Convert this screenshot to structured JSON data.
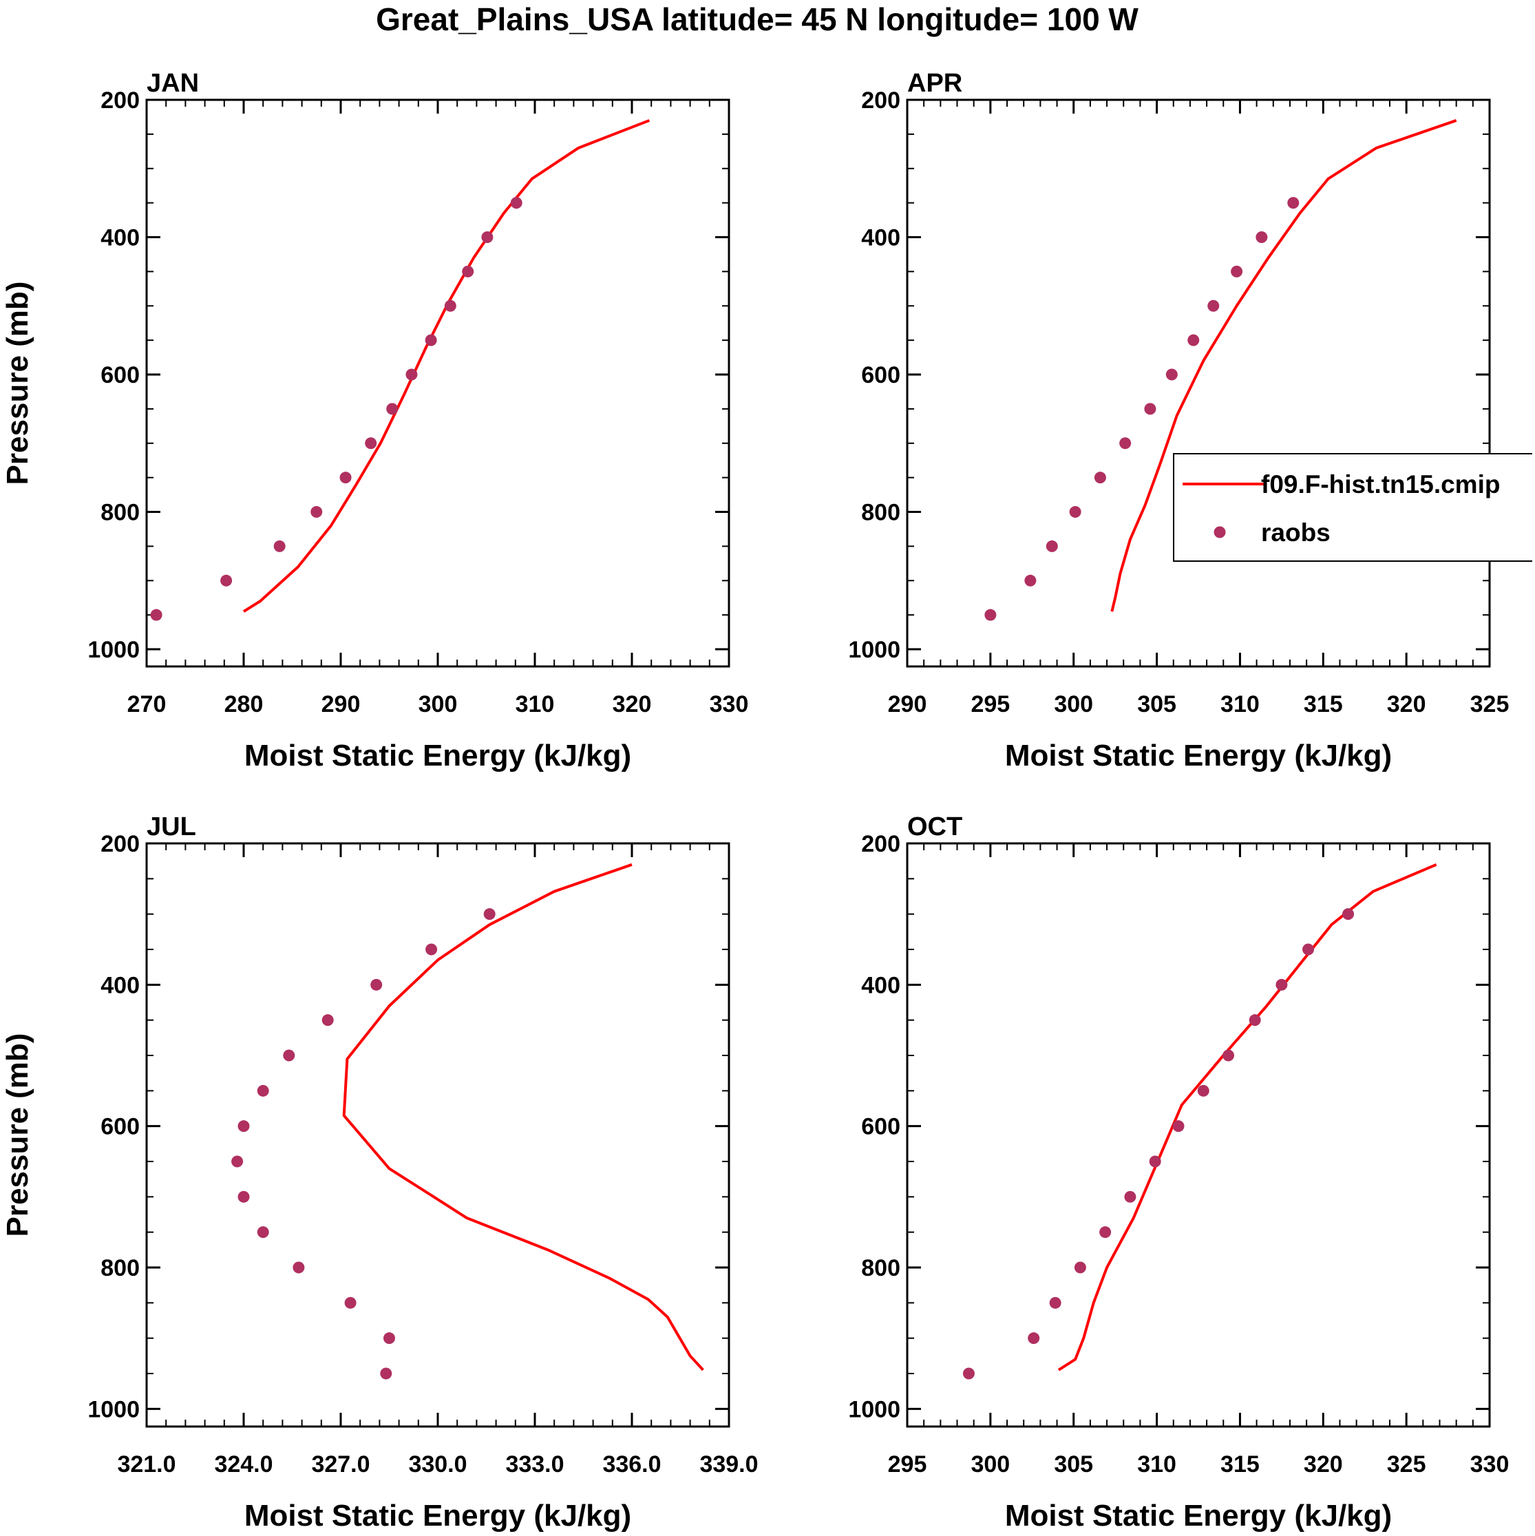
{
  "figure": {
    "title": "Great_Plains_USA  latitude= 45 N longitude= 100 W"
  },
  "legend": {
    "model_label": "f09.F-hist.tn15.cmip",
    "obs_label": "raobs"
  },
  "colors": {
    "model_line": "#ff0000",
    "obs_marker": "#b03060",
    "axes": "#000000"
  },
  "chart_data": [
    {
      "type": "line",
      "panel_label": "JAN",
      "xlabel": "Moist Static Energy (kJ/kg)",
      "ylabel": "Pressure (mb)",
      "xlim": [
        270,
        330
      ],
      "x_ticks": [
        "270",
        "280",
        "290",
        "300",
        "310",
        "320",
        "330"
      ],
      "x_tick_values": [
        270,
        280,
        290,
        300,
        310,
        320,
        330
      ],
      "ylim": [
        200,
        1025
      ],
      "y_reversed": true,
      "y_ticks": [
        "200",
        "400",
        "600",
        "800",
        "1000"
      ],
      "y_tick_values": [
        200,
        400,
        600,
        800,
        1000
      ],
      "series": [
        {
          "kind": "line",
          "x": [
            321.8,
            314.5,
            309.7,
            306.8,
            303.7,
            301.1,
            298.8,
            296.5,
            294.1,
            291.6,
            289.0,
            285.6,
            281.7,
            280.0
          ],
          "y": [
            230,
            270,
            315,
            365,
            430,
            495,
            560,
            630,
            700,
            760,
            820,
            880,
            930,
            945
          ]
        },
        {
          "kind": "scatter",
          "x": [
            308.1,
            305.1,
            303.1,
            301.3,
            299.3,
            297.3,
            295.3,
            293.1,
            290.5,
            287.5,
            283.7,
            278.2,
            271.0
          ],
          "y": [
            350,
            400,
            450,
            500,
            550,
            600,
            650,
            700,
            750,
            800,
            850,
            900,
            950
          ]
        }
      ]
    },
    {
      "type": "line",
      "panel_label": "APR",
      "xlabel": "Moist Static Energy (kJ/kg)",
      "ylabel": "",
      "xlim": [
        290,
        325
      ],
      "x_ticks": [
        "290",
        "295",
        "300",
        "305",
        "310",
        "315",
        "320",
        "325"
      ],
      "x_tick_values": [
        290,
        295,
        300,
        305,
        310,
        315,
        320,
        325
      ],
      "ylim": [
        200,
        1025
      ],
      "y_reversed": true,
      "y_ticks": [
        "200",
        "400",
        "600",
        "800",
        "1000"
      ],
      "y_tick_values": [
        200,
        400,
        600,
        800,
        1000
      ],
      "series": [
        {
          "kind": "line",
          "x": [
            323.0,
            318.2,
            315.3,
            313.6,
            311.7,
            309.8,
            307.8,
            306.2,
            305.2,
            304.3,
            303.4,
            302.8,
            302.5,
            302.3
          ],
          "y": [
            230,
            270,
            315,
            365,
            430,
            500,
            580,
            660,
            730,
            790,
            840,
            890,
            925,
            945
          ]
        },
        {
          "kind": "scatter",
          "x": [
            313.2,
            311.3,
            309.8,
            308.4,
            307.2,
            305.9,
            304.6,
            303.1,
            301.6,
            300.1,
            298.7,
            297.4,
            295.0
          ],
          "y": [
            350,
            400,
            450,
            500,
            550,
            600,
            650,
            700,
            750,
            800,
            850,
            900,
            950
          ]
        }
      ]
    },
    {
      "type": "line",
      "panel_label": "JUL",
      "xlabel": "Moist Static Energy (kJ/kg)",
      "ylabel": "Pressure (mb)",
      "xlim": [
        321.0,
        339.0
      ],
      "x_ticks": [
        "321.0",
        "324.0",
        "327.0",
        "330.0",
        "333.0",
        "336.0",
        "339.0"
      ],
      "x_tick_values": [
        321,
        324,
        327,
        330,
        333,
        336,
        339
      ],
      "ylim": [
        200,
        1025
      ],
      "y_reversed": true,
      "y_ticks": [
        "200",
        "400",
        "600",
        "800",
        "1000"
      ],
      "y_tick_values": [
        200,
        400,
        600,
        800,
        1000
      ],
      "series": [
        {
          "kind": "line",
          "x": [
            336.0,
            333.6,
            331.6,
            330.0,
            328.5,
            327.2,
            327.1,
            328.5,
            330.9,
            333.4,
            335.3,
            336.5,
            337.1,
            337.8,
            338.2
          ],
          "y": [
            230,
            268,
            315,
            365,
            430,
            505,
            585,
            660,
            730,
            775,
            815,
            845,
            870,
            925,
            945
          ]
        },
        {
          "kind": "scatter",
          "x": [
            331.6,
            329.8,
            328.1,
            326.6,
            325.4,
            324.6,
            324.0,
            323.8,
            324.0,
            324.6,
            325.7,
            327.3,
            328.5,
            328.4
          ],
          "y": [
            300,
            350,
            400,
            450,
            500,
            550,
            600,
            650,
            700,
            750,
            800,
            850,
            900,
            950
          ]
        }
      ]
    },
    {
      "type": "line",
      "panel_label": "OCT",
      "xlabel": "Moist Static Energy (kJ/kg)",
      "ylabel": "",
      "xlim": [
        295,
        330
      ],
      "x_ticks": [
        "295",
        "300",
        "305",
        "310",
        "315",
        "320",
        "325",
        "330"
      ],
      "x_tick_values": [
        295,
        300,
        305,
        310,
        315,
        320,
        325,
        330
      ],
      "ylim": [
        200,
        1025
      ],
      "y_reversed": true,
      "y_ticks": [
        "200",
        "400",
        "600",
        "800",
        "1000"
      ],
      "y_tick_values": [
        200,
        400,
        600,
        800,
        1000
      ],
      "series": [
        {
          "kind": "line",
          "x": [
            326.8,
            323.0,
            320.5,
            318.8,
            316.6,
            314.0,
            311.5,
            308.6,
            307.0,
            306.2,
            305.6,
            305.1,
            304.1
          ],
          "y": [
            230,
            268,
            315,
            365,
            430,
            500,
            570,
            730,
            800,
            850,
            900,
            930,
            945
          ]
        },
        {
          "kind": "scatter",
          "x": [
            321.5,
            319.1,
            317.5,
            315.9,
            314.3,
            312.8,
            311.3,
            309.9,
            308.4,
            306.9,
            305.4,
            303.9,
            302.6,
            298.7
          ],
          "y": [
            300,
            350,
            400,
            450,
            500,
            550,
            600,
            650,
            700,
            750,
            800,
            850,
            900,
            950
          ]
        }
      ]
    }
  ]
}
